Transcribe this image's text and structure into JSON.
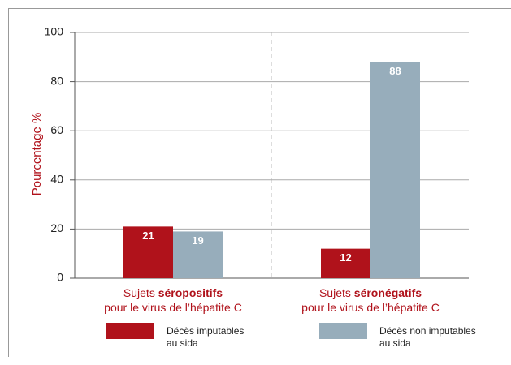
{
  "chart_data": {
    "type": "bar",
    "y_label": "Pourcentage %",
    "categories": [
      [
        [
          "Sujets ",
          "séropositifs"
        ],
        [
          "pour le virus de l’hépatite C"
        ]
      ],
      [
        [
          "Sujets ",
          "séronégatifs"
        ],
        [
          "pour le virus de l’hépatite C"
        ]
      ]
    ],
    "series": [
      {
        "name": "Décès imputables\nau sida",
        "color": "#b0121b",
        "values": [
          21,
          12
        ]
      },
      {
        "name": "Décès non imputables\nau sida",
        "color": "#97adbb",
        "values": [
          19,
          88
        ]
      }
    ],
    "ylim": [
      0,
      100
    ],
    "yticks": [
      0,
      20,
      40,
      60,
      80,
      100
    ],
    "grid": true
  }
}
